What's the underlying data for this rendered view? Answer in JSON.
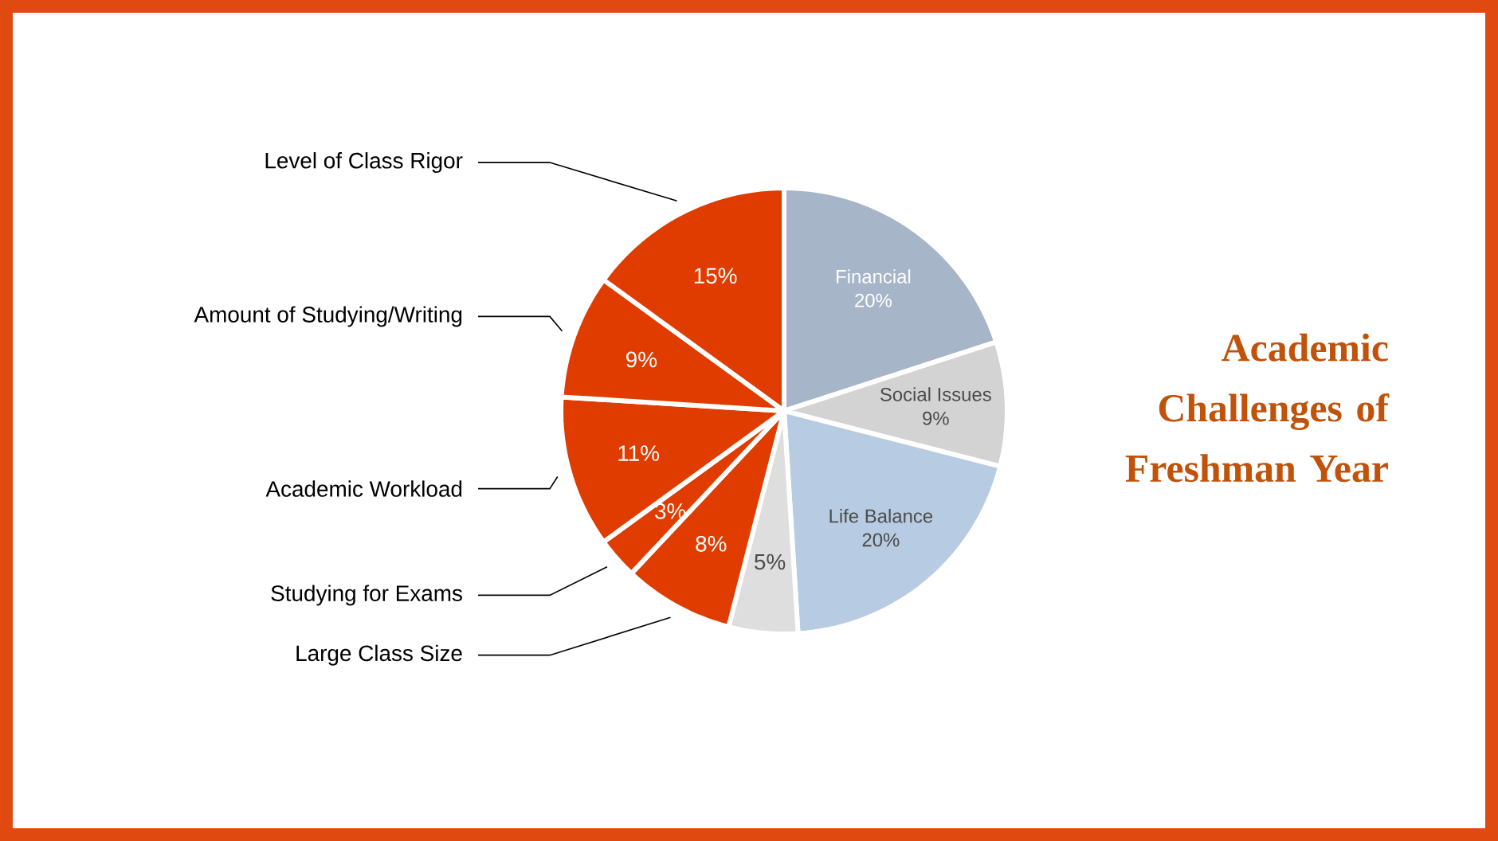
{
  "chart_data": {
    "type": "pie",
    "title": "Academic Challenges of Freshman Year",
    "categories": [
      "Financial",
      "Social Issues",
      "Life Balance",
      null,
      "Large Class Size",
      "Studying for Exams",
      "Academic Workload",
      "Amount of Studying/Writing",
      "Level of Class Rigor"
    ],
    "values": [
      20,
      9,
      20,
      5,
      8,
      3,
      11,
      9,
      15
    ],
    "value_labels": [
      "20%",
      "9%",
      "20%",
      "5%",
      "8%",
      "3%",
      "11%",
      "9%",
      "15%"
    ],
    "colors": [
      "#a7b5c9",
      "#d3d3d3",
      "#b7cbe2",
      "#dedede",
      "#e03c00",
      "#e03c00",
      "#e03c00",
      "#e03c00",
      "#e03c00"
    ]
  }
}
